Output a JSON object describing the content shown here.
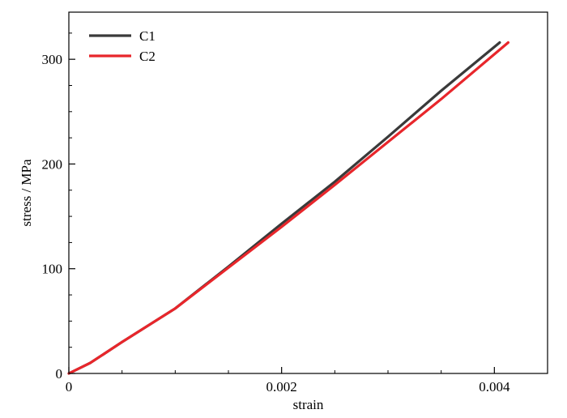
{
  "chart_data": {
    "type": "line",
    "xlabel": "strain",
    "ylabel": "stress / MPa",
    "xlim": [
      0,
      0.0045
    ],
    "ylim": [
      0,
      345
    ],
    "x_ticks": [
      0,
      0.002,
      0.004
    ],
    "x_tick_labels": [
      "0",
      "0.002",
      "0.004"
    ],
    "y_ticks": [
      0,
      100,
      200,
      300
    ],
    "y_tick_labels": [
      "0",
      "100",
      "200",
      "300"
    ],
    "x_minor_ticks": [
      0.0005,
      0.001,
      0.0015,
      0.0025,
      0.003,
      0.0035
    ],
    "y_minor_ticks": [
      25,
      50,
      75,
      125,
      150,
      175,
      225,
      250,
      275,
      325
    ],
    "grid": false,
    "legend_position": "top-left",
    "series": [
      {
        "name": "C1",
        "color": "#3a3a3a",
        "x": [
          0,
          0.0002,
          0.0005,
          0.001,
          0.0015,
          0.002,
          0.0025,
          0.003,
          0.0035,
          0.00405
        ],
        "y": [
          0,
          10,
          30,
          62,
          102,
          143,
          183,
          226,
          270,
          316
        ]
      },
      {
        "name": "C2",
        "color": "#e8262b",
        "x": [
          0,
          0.0002,
          0.0005,
          0.001,
          0.0015,
          0.002,
          0.0025,
          0.003,
          0.0035,
          0.00413
        ],
        "y": [
          0,
          10,
          30,
          62,
          101,
          140,
          180,
          221,
          262,
          316
        ]
      }
    ]
  }
}
